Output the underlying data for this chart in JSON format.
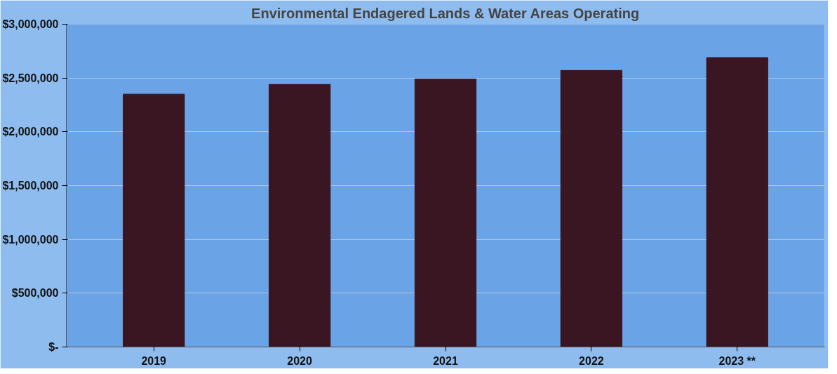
{
  "chart_data": {
    "type": "bar",
    "title": "Environmental Endagered Lands & Water Areas Operating",
    "categories": [
      "2019",
      "2020",
      "2021",
      "2022",
      "2023 **"
    ],
    "values": [
      2350000,
      2440000,
      2490000,
      2570000,
      2690000
    ],
    "color": "#3a1622",
    "ylim": [
      0,
      3000000
    ],
    "yticks": [
      {
        "value": 0,
        "label": "$-"
      },
      {
        "value": 500000,
        "label": "$500,000"
      },
      {
        "value": 1000000,
        "label": "$1,000,000"
      },
      {
        "value": 1500000,
        "label": "$1,500,000"
      },
      {
        "value": 2000000,
        "label": "$2,000,000"
      },
      {
        "value": 2500000,
        "label": "$2,500,000"
      },
      {
        "value": 3000000,
        "label": "$3,000,000"
      }
    ],
    "grid": "y"
  }
}
